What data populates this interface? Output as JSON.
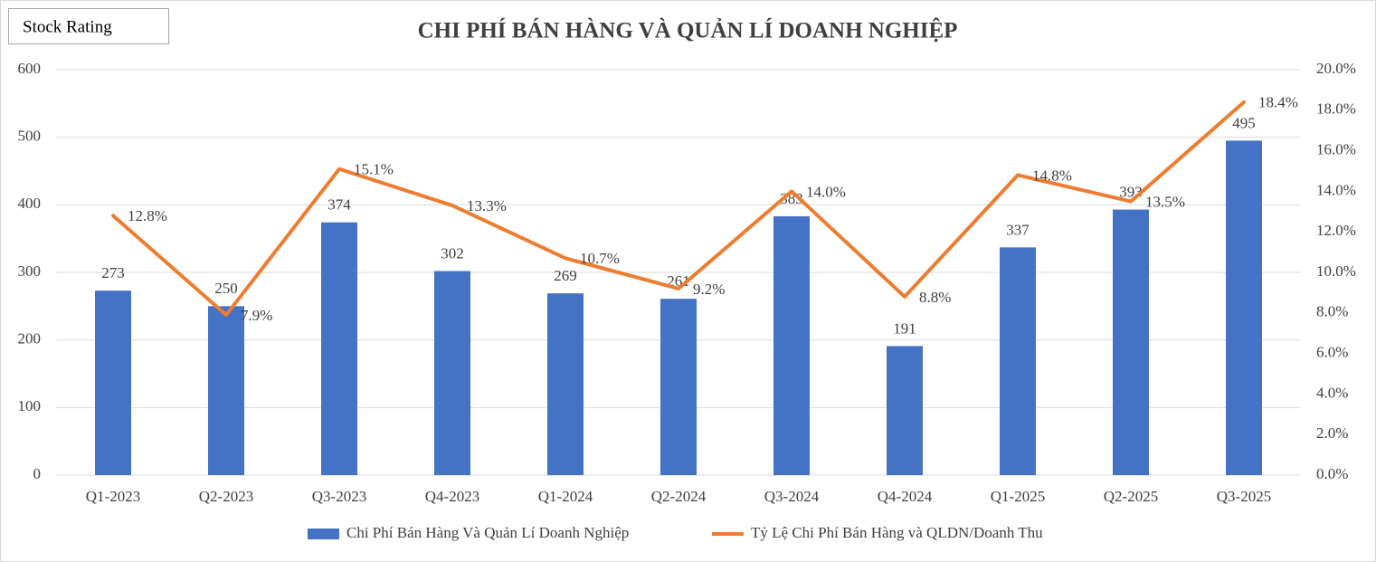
{
  "chart_data": {
    "type": "combo",
    "title": "CHI PHÍ BÁN HÀNG VÀ QUẢN LÍ DOANH NGHIỆP",
    "annotations": [
      "Stock Rating"
    ],
    "categories": [
      "Q1-2023",
      "Q2-2023",
      "Q3-2023",
      "Q4-2023",
      "Q1-2024",
      "Q2-2024",
      "Q3-2024",
      "Q4-2024",
      "Q1-2025",
      "Q2-2025",
      "Q3-2025"
    ],
    "series": [
      {
        "name": "Chi Phí Bán Hàng Và Quản Lí Doanh Nghiệp",
        "type": "bar",
        "color": "#4472c4",
        "values": [
          273,
          250,
          374,
          302,
          269,
          261,
          383,
          191,
          337,
          393,
          495
        ]
      },
      {
        "name": "Tỷ Lệ Chi Phí Bán Hàng và QLDN/Doanh Thu",
        "type": "line",
        "axis": "y2",
        "color": "#ed7d31",
        "values": [
          12.8,
          7.9,
          15.1,
          13.3,
          10.7,
          9.2,
          14.0,
          8.8,
          14.8,
          13.5,
          18.4
        ],
        "value_labels": [
          "12.8%",
          "7.9%",
          "15.1%",
          "13.3%",
          "10.7%",
          "9.2%",
          "14.0%",
          "8.8%",
          "14.8%",
          "13.5%",
          "18.4%"
        ]
      }
    ],
    "ylim": [
      0,
      600
    ],
    "yticks": [
      0,
      100,
      200,
      300,
      400,
      500,
      600
    ],
    "y2lim": [
      0,
      20
    ],
    "y2ticks": [
      {
        "value": 0,
        "label": "0.0%"
      },
      {
        "value": 2,
        "label": "2.0%"
      },
      {
        "value": 4,
        "label": "4.0%"
      },
      {
        "value": 6,
        "label": "6.0%"
      },
      {
        "value": 8,
        "label": "8.0%"
      },
      {
        "value": 10,
        "label": "10.0%"
      },
      {
        "value": 12,
        "label": "12.0%"
      },
      {
        "value": 14,
        "label": "14.0%"
      },
      {
        "value": 16,
        "label": "16.0%"
      },
      {
        "value": 18,
        "label": "18.0%"
      },
      {
        "value": 20,
        "label": "20.0%"
      }
    ],
    "grid": true,
    "legend": "bottom"
  }
}
